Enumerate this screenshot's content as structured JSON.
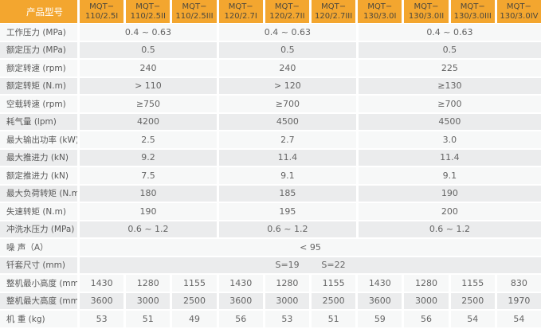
{
  "colors": {
    "header_background": "#f3a62f",
    "header_label_text": "#ffffff",
    "header_column_text": "#4d483c",
    "stripe_light": "#f7f8f8",
    "stripe_dark": "#ebeced",
    "body_text": "#646464"
  },
  "table": {
    "header": {
      "label": "产品型号",
      "columns": [
        {
          "line1": "MQT−",
          "line2": "110/2.5I"
        },
        {
          "line1": "MQT−",
          "line2": "110/2.5II"
        },
        {
          "line1": "MQT−",
          "line2": "110/2.5III"
        },
        {
          "line1": "MQT−",
          "line2": "120/2.7I"
        },
        {
          "line1": "MQT−",
          "line2": "120/2.7II"
        },
        {
          "line1": "MQT−",
          "line2": "120/2.7III"
        },
        {
          "line1": "MQT−",
          "line2": "130/3.0I"
        },
        {
          "line1": "MQT−",
          "line2": "130/3.0II"
        },
        {
          "line1": "MQT−",
          "line2": "130/3.0III"
        },
        {
          "line1": "MQT−",
          "line2": "130/3.0IV"
        }
      ]
    },
    "rows": [
      {
        "label": "工作压力 (MPa)",
        "groups": [
          "0.4 ~ 0.63",
          "0.4 ~ 0.63",
          "0.4 ~ 0.63"
        ]
      },
      {
        "label": "额定压力 (MPa)",
        "groups": [
          "0.5",
          "0.5",
          "0.5"
        ]
      },
      {
        "label": "额定转速 (rpm)",
        "groups": [
          "240",
          "240",
          "225"
        ]
      },
      {
        "label": "额定转矩 (N.m)",
        "groups": [
          "> 110",
          "> 120",
          "≥130"
        ]
      },
      {
        "label": "空载转速 (rpm)",
        "groups": [
          "≥750",
          "≥700",
          "≥700"
        ]
      },
      {
        "label": "耗气量 (lpm)",
        "groups": [
          "4200",
          "4500",
          "4500"
        ]
      },
      {
        "label": "最大输出功率 (kW)",
        "groups": [
          "2.5",
          "2.7",
          "3.0"
        ]
      },
      {
        "label": "最大推进力 (kN)",
        "groups": [
          "9.2",
          "11.4",
          "11.4"
        ]
      },
      {
        "label": "额定推进力 (kN)",
        "groups": [
          "7.5",
          "9.1",
          "9.1"
        ]
      },
      {
        "label": "最大负荷转矩 (N.m)",
        "groups": [
          "180",
          "185",
          "190"
        ]
      },
      {
        "label": "失速转矩 (N.m)",
        "groups": [
          "190",
          "195",
          "200"
        ]
      },
      {
        "label": "冲洗水压力 (MPa)",
        "groups": [
          "0.6 ~ 1.2",
          "0.6 ~ 1.2",
          "0.6 ~ 1.2"
        ]
      },
      {
        "label": "噪 声（A）",
        "span": "< 95"
      },
      {
        "label": "钎套尺寸 (mm)",
        "cells": [
          "",
          "",
          "",
          "",
          "S=19",
          "S=22",
          "",
          "",
          "",
          ""
        ]
      },
      {
        "label": "整机最小高度 (mm)",
        "cells": [
          "1430",
          "1280",
          "1155",
          "1430",
          "1280",
          "1155",
          "1430",
          "1280",
          "1155",
          "830"
        ]
      },
      {
        "label": "整机最大高度 (mm)",
        "cells": [
          "3600",
          "3000",
          "2500",
          "3600",
          "3000",
          "2500",
          "3600",
          "3000",
          "2500",
          "1970"
        ]
      },
      {
        "label": "机 重 (kg)",
        "cells": [
          "53",
          "51",
          "49",
          "56",
          "53",
          "51",
          "59",
          "56",
          "54",
          "54"
        ]
      }
    ]
  }
}
